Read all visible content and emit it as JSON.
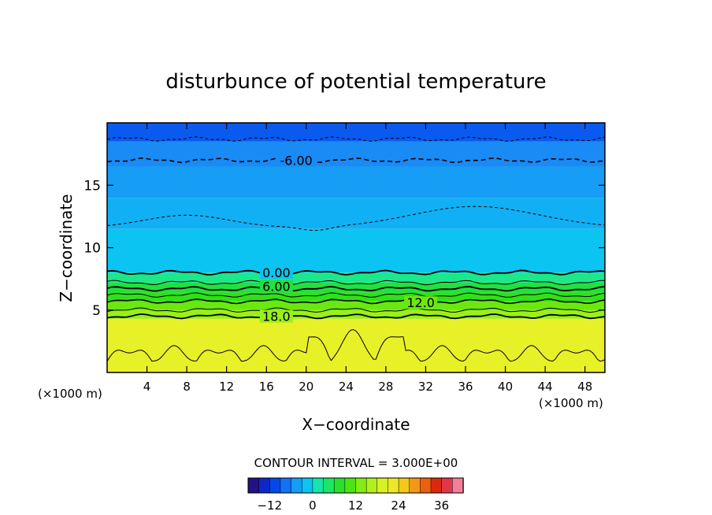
{
  "chart_data": {
    "type": "heatmap",
    "title": "disturbunce of potential temperature",
    "xlabel": "X−coordinate",
    "ylabel": "Z−coordinate",
    "x_unit_left": "(×1000 m)",
    "x_unit_right": "(×1000 m)",
    "xlim": [
      0,
      50
    ],
    "ylim": [
      0,
      20
    ],
    "x_ticks": [
      4,
      8,
      12,
      16,
      20,
      24,
      28,
      32,
      36,
      40,
      44,
      48
    ],
    "y_ticks": [
      5,
      10,
      15
    ],
    "x_tick_labels": [
      "4",
      "8",
      "12",
      "16",
      "20",
      "24",
      "28",
      "32",
      "36",
      "40",
      "44",
      "48"
    ],
    "y_tick_labels": [
      "5",
      "10",
      "15"
    ],
    "contour_interval_text": "CONTOUR INTERVAL = 3.000E+00",
    "contour_labels": [
      {
        "text": "-6.00",
        "x": 19,
        "z": 17.0
      },
      {
        "text": "0.00",
        "x": 17,
        "z": 8.0
      },
      {
        "text": "6.00",
        "x": 17,
        "z": 6.9
      },
      {
        "text": "12.0",
        "x": 31.5,
        "z": 5.6
      },
      {
        "text": "18.0",
        "x": 17,
        "z": 4.5
      }
    ],
    "field_bands": [
      {
        "z0": 0,
        "z1": 4.3,
        "value": 21
      },
      {
        "z0": 4.3,
        "z1": 5.0,
        "value": 15
      },
      {
        "z0": 5.0,
        "z1": 5.7,
        "value": 12
      },
      {
        "z0": 5.7,
        "z1": 6.4,
        "value": 9
      },
      {
        "z0": 6.4,
        "z1": 7.2,
        "value": 6
      },
      {
        "z0": 7.2,
        "z1": 8.0,
        "value": 3
      },
      {
        "z0": 8.0,
        "z1": 11.5,
        "value": -1.5
      },
      {
        "z0": 11.5,
        "z1": 14.0,
        "value": -3
      },
      {
        "z0": 14.0,
        "z1": 16.5,
        "value": -4.5
      },
      {
        "z0": 16.5,
        "z1": 18.5,
        "value": -6
      },
      {
        "z0": 18.5,
        "z1": 20,
        "value": -9
      }
    ],
    "colorbar": {
      "min": -18,
      "max": 42,
      "step": 3,
      "tick_values": [
        -12,
        0,
        12,
        24,
        36
      ],
      "tick_labels": [
        "−12",
        "0",
        "12",
        "24",
        "36"
      ]
    },
    "grid": false
  }
}
